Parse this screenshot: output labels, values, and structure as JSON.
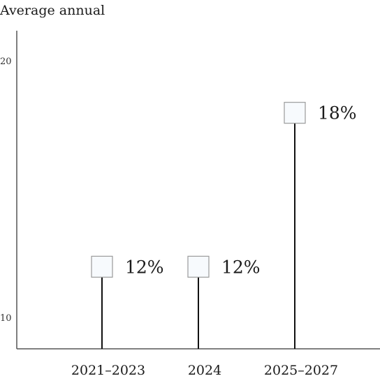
{
  "chart_data": {
    "type": "lollipop",
    "title": "Average annual",
    "xlabel": "",
    "ylabel": "",
    "ylim": [
      8.8,
      21.2
    ],
    "yticks": [
      10,
      20
    ],
    "grid": false,
    "categories": [
      "2021–2023",
      "2024",
      "2025–2027"
    ],
    "values": [
      12,
      12,
      18
    ],
    "data_labels": [
      "12%",
      "12%",
      "18%"
    ],
    "colors": {
      "stem": "#111111",
      "marker_fill": "#f7fafd",
      "marker_stroke": "#9a9a9a",
      "axis": "#555555"
    }
  }
}
